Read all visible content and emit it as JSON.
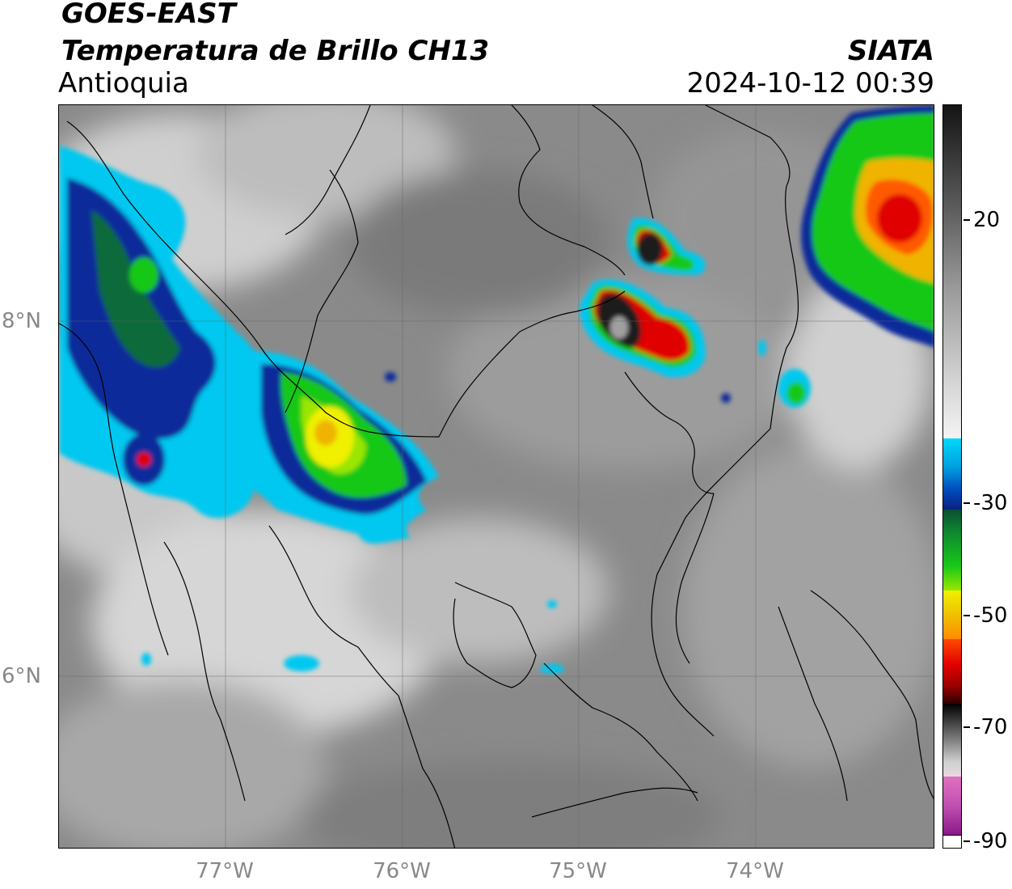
{
  "header": {
    "satellite": "GOES-EAST",
    "product": "Temperatura de Brillo CH13",
    "region": "Antioquia",
    "brand": "SIATA",
    "datetime": "2024-10-12 00:39"
  },
  "map": {
    "latitude_labels": [
      "8°N",
      "6°N"
    ],
    "longitude_labels": [
      "77°W",
      "76°W",
      "75°W",
      "74°W"
    ]
  },
  "colorbar": {
    "tick_labels": [
      "20",
      "-30",
      "-50",
      "-70",
      "-90"
    ],
    "colors": {
      "warm_gray_top": "#2a2a2a",
      "white": "#f4f4f4",
      "cyan": "#00c8f0",
      "blue": "#0a2a9a",
      "green": "#19c819",
      "yellow": "#f0f000",
      "orange": "#ff8c00",
      "red": "#e00000",
      "black": "#000000",
      "light_gray": "#d8d8d8",
      "pink": "#e070c0",
      "purple": "#8a1a8a"
    }
  }
}
